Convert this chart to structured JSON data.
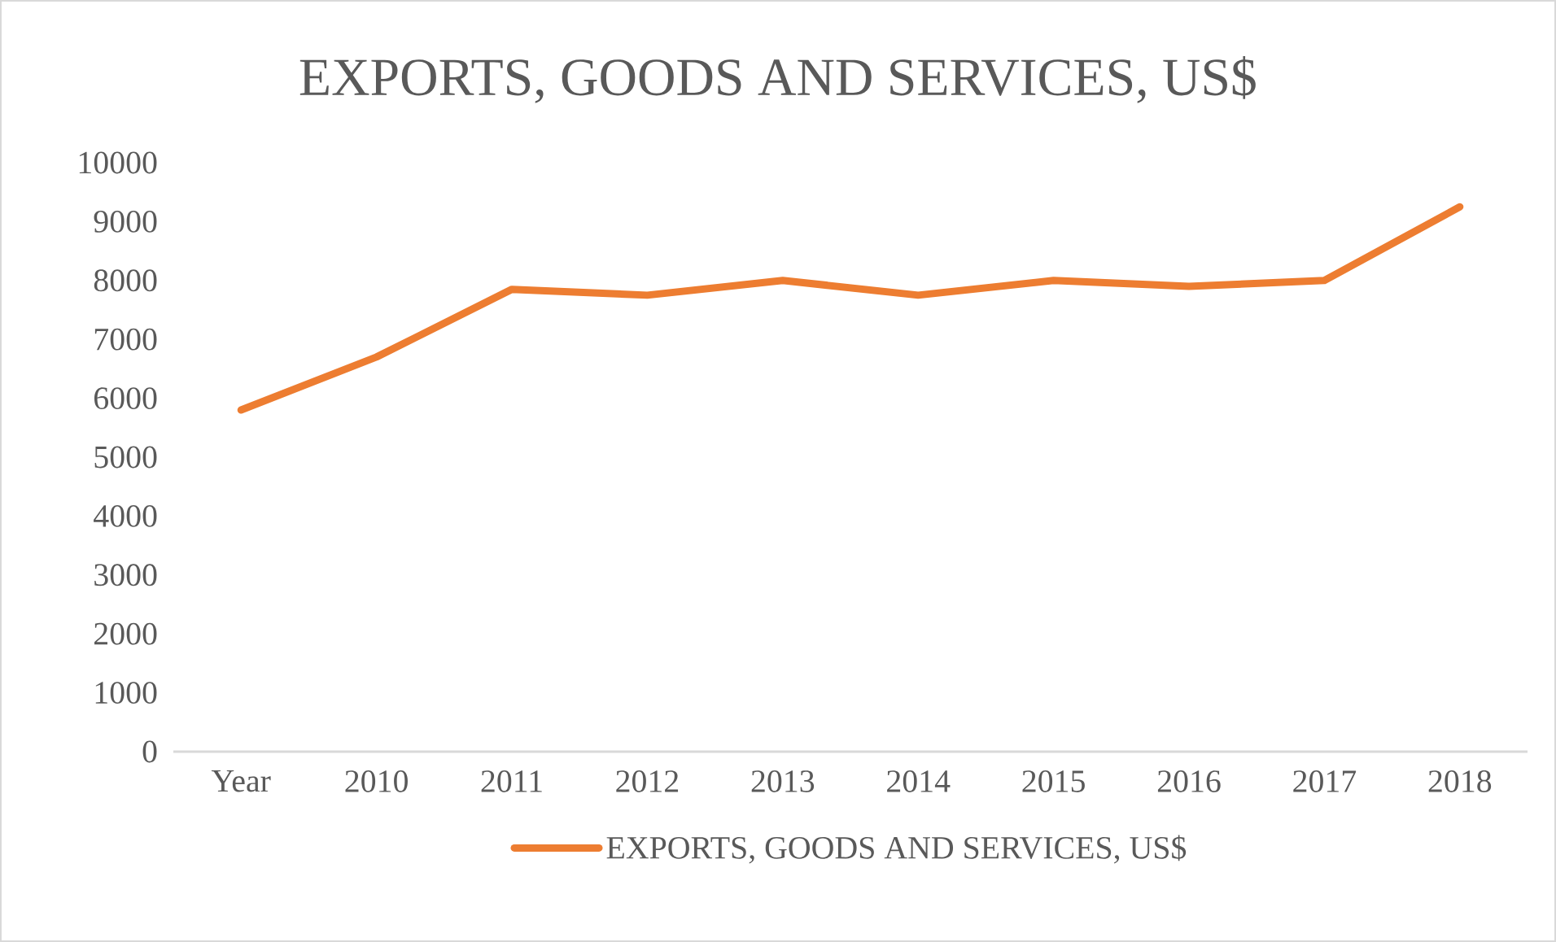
{
  "chart_data": {
    "type": "line",
    "title": "EXPORTS, GOODS AND SERVICES, US$",
    "categories": [
      "Year",
      "2010",
      "2011",
      "2012",
      "2013",
      "2014",
      "2015",
      "2016",
      "2017",
      "2018"
    ],
    "series": [
      {
        "name": "EXPORTS, GOODS AND SERVICES, US$",
        "color": "#ed7d31",
        "values": [
          5800,
          6700,
          7850,
          7750,
          8000,
          7750,
          8000,
          7900,
          8000,
          9250
        ]
      }
    ],
    "ylim": [
      0,
      10000
    ],
    "yticks": [
      0,
      1000,
      2000,
      3000,
      4000,
      5000,
      6000,
      7000,
      8000,
      9000,
      10000
    ],
    "legend": "bottom"
  }
}
